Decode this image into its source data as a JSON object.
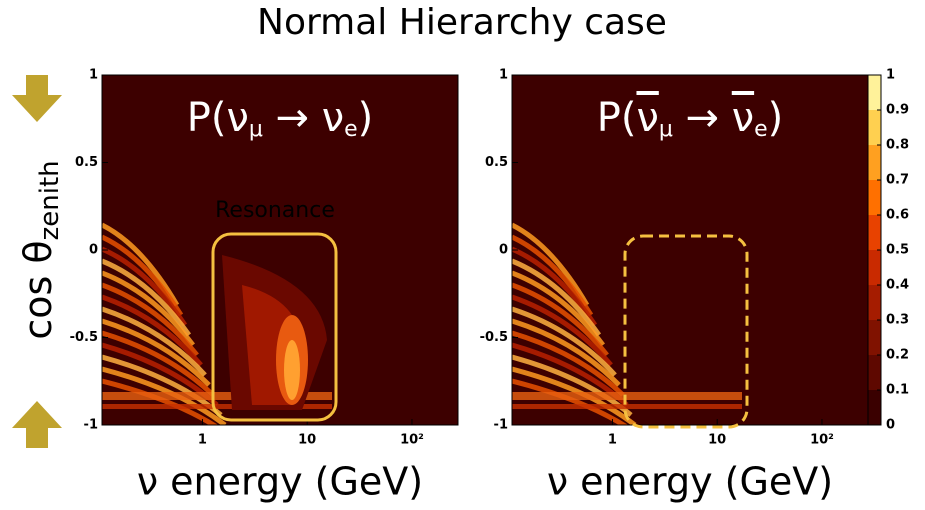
{
  "title": "Normal Hierarchy case",
  "ylabel": {
    "main": "cos θ",
    "sub": "zenith"
  },
  "chart_data": [
    {
      "type": "heatmap",
      "title_parts": [
        "P(",
        "ν",
        "μ",
        " → ",
        "ν",
        "e",
        ")"
      ],
      "annotation": "Resonance",
      "xlabel": "ν energy (GeV)",
      "xscale": "log",
      "xlim": [
        0.11,
        275
      ],
      "xticks": [
        1,
        10,
        {
          "value": 100,
          "label": "10²"
        }
      ],
      "ylim": [
        -1,
        1
      ],
      "yticks": [
        1,
        0.5,
        0,
        -0.5,
        -1
      ]
    },
    {
      "type": "heatmap",
      "title_parts": [
        "P(",
        "ν",
        "μ",
        " → ",
        "ν",
        "e",
        ")"
      ],
      "xlabel": "ν energy (GeV)",
      "xscale": "log",
      "xlim": [
        0.11,
        275
      ],
      "xticks": [
        1,
        10,
        {
          "value": 100,
          "label": "10²"
        }
      ],
      "ylim": [
        -1,
        1
      ],
      "yticks": [
        1,
        0.5,
        0,
        -0.5,
        -1
      ],
      "colorbar": {
        "lim": [
          0,
          1
        ],
        "ticks": [
          1,
          0.9,
          0.8,
          0.7,
          0.6,
          0.5,
          0.4,
          0.3,
          0.2,
          0.1,
          0
        ],
        "colors": [
          "#3a0000",
          "#5e0800",
          "#801200",
          "#a51c00",
          "#c92a00",
          "#e84200",
          "#ff7000",
          "#ffa020",
          "#ffd050",
          "#fff29a"
        ]
      }
    }
  ]
}
